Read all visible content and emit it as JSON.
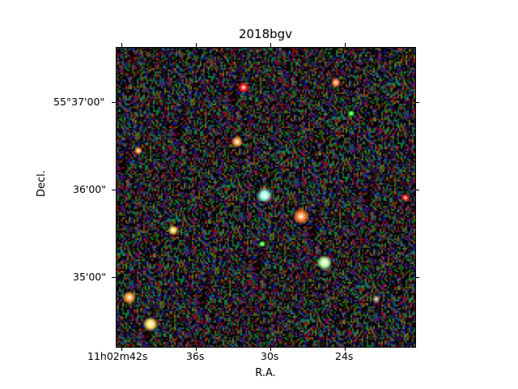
{
  "title": "2018bgv",
  "axes": {
    "xlabel": "R.A.",
    "ylabel": "Decl.",
    "x_ticks": [
      "11h02m42s",
      "36s",
      "30s",
      "24s"
    ],
    "y_ticks": [
      "55°37'00\"",
      "36'00\"",
      "35'00\""
    ]
  },
  "image": {
    "background": "#050303",
    "noise_colors": [
      "#b01010",
      "#10a020",
      "#1a1ab0",
      "#9a7a10",
      "#7a1090",
      "#109080"
    ],
    "sources": [
      {
        "name": "red-star-top",
        "color": "#ff2020"
      },
      {
        "name": "orange-star-top-right",
        "color": "#ff8040"
      },
      {
        "name": "green-pixel-upper-right",
        "color": "#20ff20"
      },
      {
        "name": "yellow-star-upper-left",
        "color": "#ffa040"
      },
      {
        "name": "orange-star-left",
        "color": "#ff9040"
      },
      {
        "name": "cyan-transient-center",
        "color": "#a0ffe8"
      },
      {
        "name": "orange-galaxy-center-right",
        "color": "#ff8030"
      },
      {
        "name": "red-star-right-edge",
        "color": "#ff3020"
      },
      {
        "name": "yellow-star-left-middle",
        "color": "#ffd050"
      },
      {
        "name": "green-pixel-center",
        "color": "#30ff30"
      },
      {
        "name": "green-star-lower-right",
        "color": "#c0ffa0"
      },
      {
        "name": "orange-star-lower-left",
        "color": "#ffa040"
      },
      {
        "name": "yellow-star-bottom-left",
        "color": "#ffe060"
      },
      {
        "name": "faint-star-bottom-right",
        "color": "#a08060"
      }
    ]
  }
}
